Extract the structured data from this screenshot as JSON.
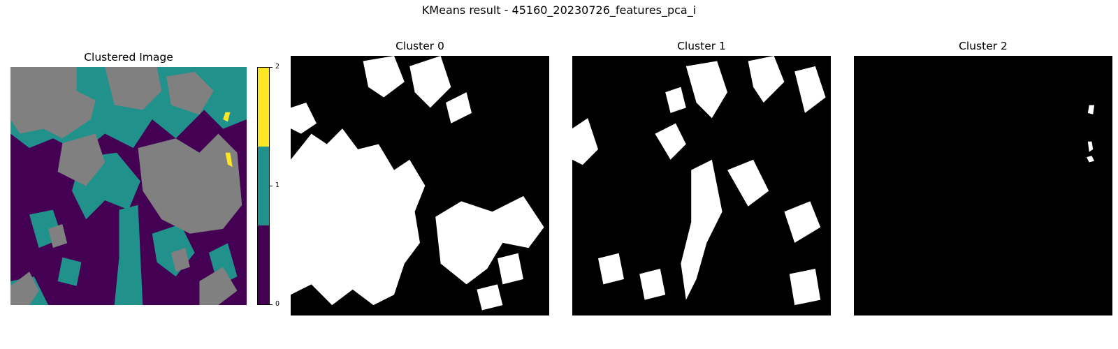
{
  "figure": {
    "suptitle": "KMeans result - 45160_20230726_features_pca_i"
  },
  "colors": {
    "cluster_0": "#440154",
    "cluster_1": "#21918c",
    "cluster_2": "#fde725",
    "nodata": "#808080",
    "mask_on": "#ffffff",
    "mask_off": "#000000"
  },
  "chart_data": [
    {
      "type": "heatmap",
      "title": "Clustered Image",
      "colorbar": {
        "ticks": [
          "0",
          "1",
          "2"
        ],
        "range": [
          0,
          2
        ],
        "colors": [
          "#440154",
          "#21918c",
          "#fde725"
        ]
      },
      "axes": "off"
    },
    {
      "type": "heatmap",
      "title": "Cluster 0",
      "axes": "off",
      "colormap": "binary"
    },
    {
      "type": "heatmap",
      "title": "Cluster 1",
      "axes": "off",
      "colormap": "binary"
    },
    {
      "type": "heatmap",
      "title": "Cluster 2",
      "axes": "off",
      "colormap": "binary"
    }
  ]
}
